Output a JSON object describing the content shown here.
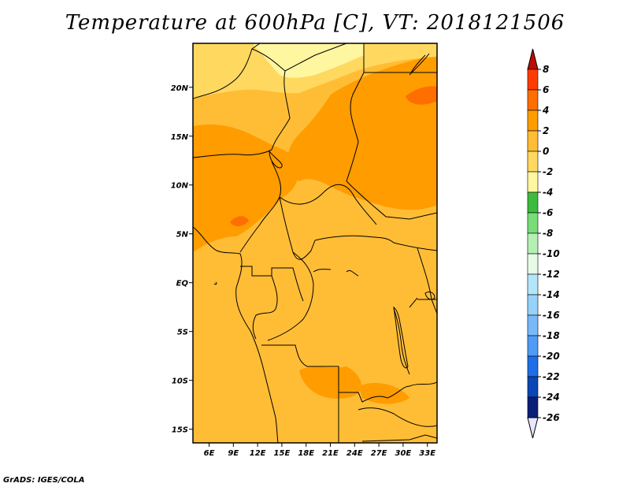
{
  "title": "Temperature at 600hPa [C], VT: 2018121506",
  "credit": "GrADS: IGES/COLA",
  "map": {
    "lat_labels": [
      {
        "label": "20N",
        "lat": 20
      },
      {
        "label": "15N",
        "lat": 15
      },
      {
        "label": "10N",
        "lat": 10
      },
      {
        "label": "5N",
        "lat": 5
      },
      {
        "label": "EQ",
        "lat": 0
      },
      {
        "label": "5S",
        "lat": -5
      },
      {
        "label": "10S",
        "lat": -10
      },
      {
        "label": "15S",
        "lat": -15
      }
    ],
    "lon_labels": [
      {
        "label": "6E",
        "lon": 6
      },
      {
        "label": "9E",
        "lon": 9
      },
      {
        "label": "12E",
        "lon": 12
      },
      {
        "label": "15E",
        "lon": 15
      },
      {
        "label": "18E",
        "lon": 18
      },
      {
        "label": "21E",
        "lon": 21
      },
      {
        "label": "24E",
        "lon": 24
      },
      {
        "label": "27E",
        "lon": 27
      },
      {
        "label": "30E",
        "lon": 30
      },
      {
        "label": "33E",
        "lon": 33
      }
    ]
  },
  "colorbar": {
    "labels": [
      "8",
      "6",
      "4",
      "2",
      "0",
      "-2",
      "-4",
      "-6",
      "-8",
      "-10",
      "-12",
      "-14",
      "-16",
      "-18",
      "-20",
      "-22",
      "-24",
      "-26"
    ],
    "colors": [
      "#c00a00",
      "#ff3c00",
      "#ff6e00",
      "#ff9c00",
      "#ffbd36",
      "#ffd860",
      "#fff6a0",
      "#3cbc3c",
      "#78dc78",
      "#b4f0b4",
      "#e6fae6",
      "#b4e6fa",
      "#96d2fa",
      "#78b9fa",
      "#509bf5",
      "#1e6ee6",
      "#0a46b4",
      "#0a1e78",
      "#0a1454",
      "#e6e6ff"
    ]
  }
}
